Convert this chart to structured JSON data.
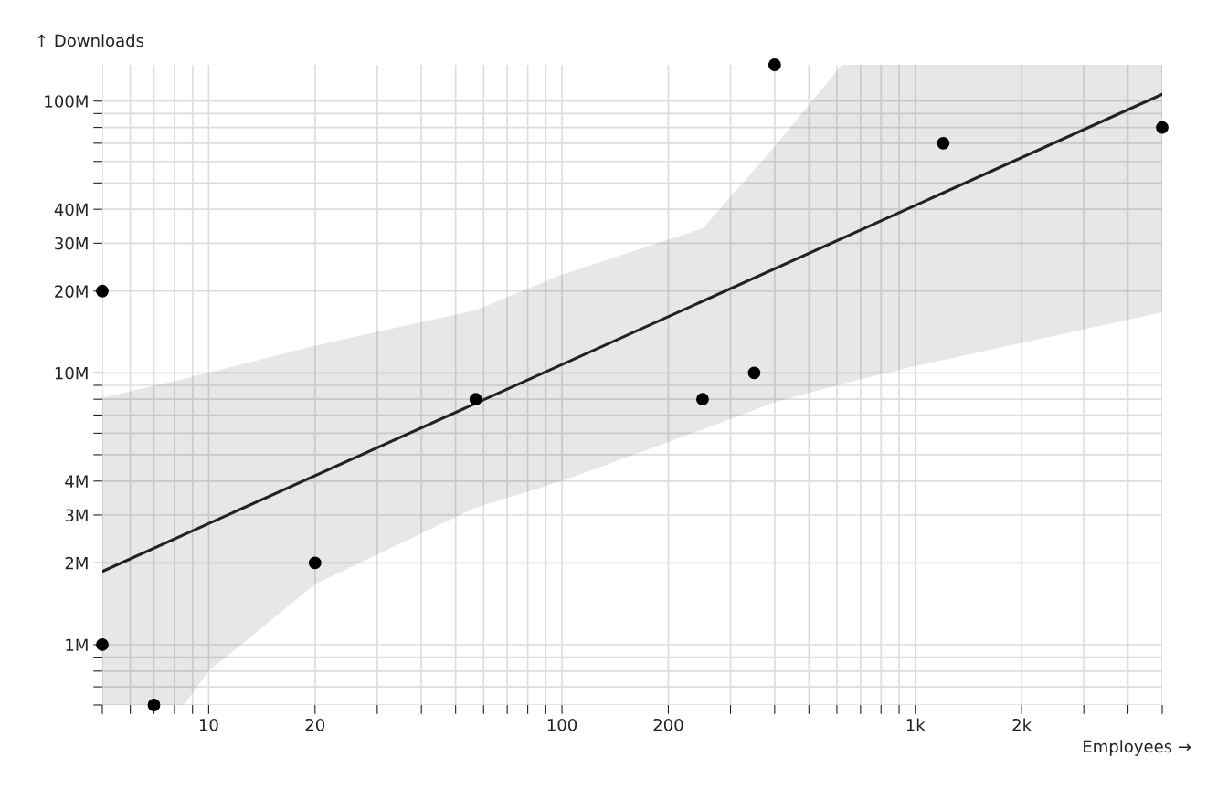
{
  "chart_data": {
    "type": "scatter",
    "xlabel": "Employees →",
    "ylabel": "↑ Downloads",
    "log": "xy",
    "grid": true,
    "xlim": [
      5,
      5000
    ],
    "ylim": [
      600000,
      136000000
    ],
    "xticks": [
      {
        "value": 5,
        "label": null
      },
      {
        "value": 6,
        "label": null
      },
      {
        "value": 7,
        "label": null
      },
      {
        "value": 8,
        "label": null
      },
      {
        "value": 9,
        "label": null
      },
      10,
      20,
      {
        "value": 30,
        "label": null
      },
      {
        "value": 40,
        "label": null
      },
      {
        "value": 50,
        "label": null
      },
      {
        "value": 60,
        "label": null
      },
      {
        "value": 70,
        "label": null
      },
      {
        "value": 80,
        "label": null
      },
      {
        "value": 90,
        "label": null
      },
      100,
      200,
      {
        "value": 300,
        "label": null
      },
      {
        "value": 400,
        "label": null
      },
      {
        "value": 500,
        "label": null
      },
      {
        "value": 600,
        "label": null
      },
      {
        "value": 700,
        "label": null
      },
      {
        "value": 800,
        "label": null
      },
      {
        "value": 900,
        "label": null
      },
      {
        "value": 1000,
        "label": "1k"
      },
      {
        "value": 2000,
        "label": "2k"
      },
      {
        "value": 3000,
        "label": null
      },
      {
        "value": 4000,
        "label": null
      },
      {
        "value": 5000,
        "label": null
      }
    ],
    "yticks": [
      {
        "value": 600000,
        "label": null
      },
      {
        "value": 700000,
        "label": null
      },
      {
        "value": 800000,
        "label": null
      },
      {
        "value": 900000,
        "label": null
      },
      {
        "value": 1000000,
        "label": "1M"
      },
      {
        "value": 2000000,
        "label": "2M"
      },
      {
        "value": 3000000,
        "label": "3M"
      },
      {
        "value": 4000000,
        "label": "4M"
      },
      {
        "value": 5000000,
        "label": null
      },
      {
        "value": 6000000,
        "label": null
      },
      {
        "value": 7000000,
        "label": null
      },
      {
        "value": 8000000,
        "label": null
      },
      {
        "value": 9000000,
        "label": null
      },
      {
        "value": 10000000,
        "label": "10M"
      },
      {
        "value": 20000000,
        "label": "20M"
      },
      {
        "value": 30000000,
        "label": "30M"
      },
      {
        "value": 40000000,
        "label": "40M"
      },
      {
        "value": 50000000,
        "label": null
      },
      {
        "value": 60000000,
        "label": null
      },
      {
        "value": 70000000,
        "label": null
      },
      {
        "value": 80000000,
        "label": null
      },
      {
        "value": 90000000,
        "label": null
      },
      {
        "value": 100000000,
        "label": "100M"
      }
    ],
    "series": [
      {
        "type": "line",
        "color": "#222222",
        "x": [
          5,
          8.5,
          10,
          20,
          57,
          100,
          250,
          400,
          620,
          1000,
          5000
        ],
        "values": [
          1860000,
          null,
          null,
          null,
          null,
          null,
          null,
          null,
          null,
          null,
          106000000
        ],
        "lower": [
          600000,
          600000,
          800000,
          1670000,
          3200000,
          4000000,
          6200000,
          7800000,
          9100000,
          10600000,
          16700000
        ],
        "upper": [
          8100000,
          9500000,
          10000000,
          12600000,
          17000000,
          23000000,
          34000000,
          68000000,
          136000000,
          136000000,
          136000000
        ]
      },
      {
        "color": "#000000",
        "marker": "circle",
        "x": [
          5,
          5,
          7,
          20,
          57,
          250,
          350,
          400,
          1200,
          5000
        ],
        "values": [
          20000000,
          1000000,
          600000,
          2000000,
          8000000,
          8000000,
          10000000,
          136000000,
          70000000,
          80000000
        ]
      }
    ]
  }
}
